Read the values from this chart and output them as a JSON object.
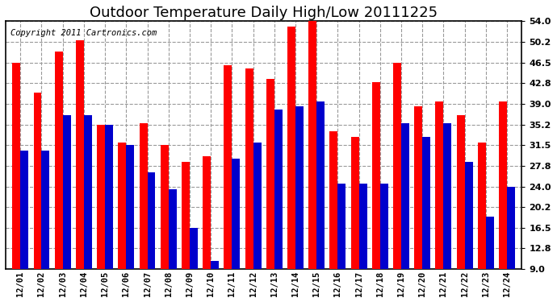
{
  "title": "Outdoor Temperature Daily High/Low 20111225",
  "copyright": "Copyright 2011 Cartronics.com",
  "dates": [
    "12/01",
    "12/02",
    "12/03",
    "12/04",
    "12/05",
    "12/06",
    "12/07",
    "12/08",
    "12/09",
    "12/10",
    "12/11",
    "12/12",
    "12/13",
    "12/14",
    "12/15",
    "12/16",
    "12/17",
    "12/18",
    "12/19",
    "12/20",
    "12/21",
    "12/22",
    "12/23",
    "12/24"
  ],
  "highs": [
    46.5,
    41.0,
    48.5,
    50.5,
    35.2,
    32.0,
    35.5,
    31.5,
    28.5,
    29.5,
    46.0,
    45.5,
    43.5,
    53.0,
    54.0,
    34.0,
    33.0,
    43.0,
    46.5,
    38.5,
    39.5,
    37.0,
    32.0,
    39.5
  ],
  "lows": [
    30.5,
    30.5,
    37.0,
    37.0,
    35.2,
    31.5,
    26.5,
    23.5,
    16.5,
    10.5,
    29.0,
    32.0,
    38.0,
    38.5,
    39.5,
    24.5,
    24.5,
    24.5,
    35.5,
    33.0,
    35.5,
    28.5,
    18.5,
    24.0
  ],
  "high_color": "#ff0000",
  "low_color": "#0000cc",
  "bg_color": "#ffffff",
  "plot_bg_color": "#ffffff",
  "grid_color": "#999999",
  "ylim": [
    9.0,
    54.0
  ],
  "yticks": [
    9.0,
    12.8,
    16.5,
    20.2,
    24.0,
    27.8,
    31.5,
    35.2,
    39.0,
    42.8,
    46.5,
    50.2,
    54.0
  ],
  "title_fontsize": 13,
  "copyright_fontsize": 7.5,
  "bar_width": 0.38,
  "figsize": [
    6.9,
    3.75
  ],
  "dpi": 100
}
